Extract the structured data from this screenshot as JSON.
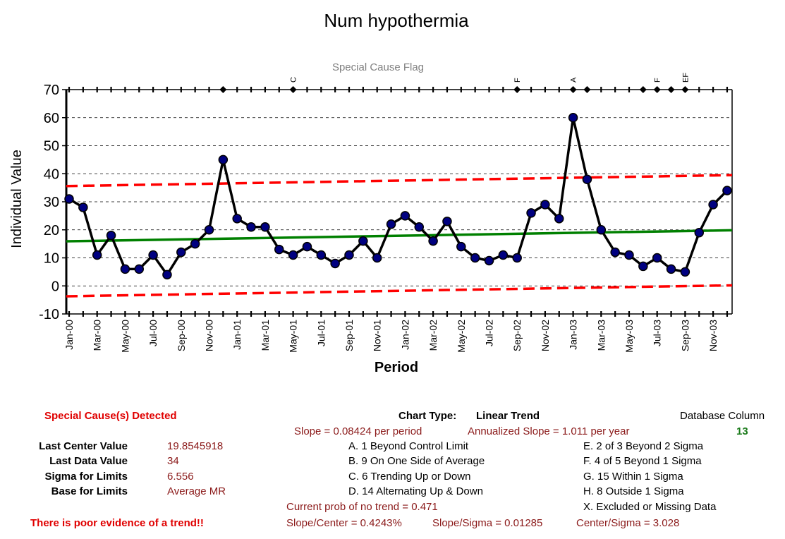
{
  "chart_data": {
    "type": "line",
    "title": "Num hypothermia",
    "flag_label": "Special Cause Flag",
    "xlabel": "Period",
    "ylabel": "Individual Value",
    "ylim": [
      -10,
      70
    ],
    "yticks": [
      -10,
      0,
      10,
      20,
      30,
      40,
      50,
      60,
      70
    ],
    "x_tick_labels": [
      "Jan-00",
      "Mar-00",
      "May-00",
      "Jul-00",
      "Sep-00",
      "Nov-00",
      "Jan-01",
      "Mar-01",
      "May-01",
      "Jul-01",
      "Sep-01",
      "Nov-01",
      "Jan-02",
      "Mar-02",
      "May-02",
      "Jul-02",
      "Sep-02",
      "Nov-02",
      "Jan-03",
      "Mar-03",
      "May-03",
      "Jul-03",
      "Sep-03",
      "Nov-03"
    ],
    "grid": "horizontal dashed",
    "series": [
      {
        "values": [
          31,
          28,
          11,
          18,
          6,
          6,
          11,
          4,
          12,
          15,
          20,
          45,
          24,
          21,
          21,
          13,
          11,
          14,
          11,
          8,
          11,
          16,
          10,
          22,
          25,
          21,
          16,
          23,
          14,
          10,
          9,
          11,
          10,
          26,
          29,
          24,
          60,
          38,
          20,
          12,
          11,
          7,
          10,
          6,
          5,
          19,
          29,
          34
        ],
        "color": "#000080"
      }
    ],
    "center_line": {
      "start": 15.9,
      "end": 19.85,
      "color": "#008000"
    },
    "ucl": {
      "start": 35.6,
      "end": 39.5,
      "color": "#ff0000"
    },
    "lcl": {
      "start": -3.7,
      "end": 0.2,
      "color": "#ff0000"
    },
    "flag_points": [
      11,
      16,
      32,
      36,
      37,
      41,
      42,
      43,
      44
    ],
    "flag_letters": [
      {
        "index": 16,
        "text": "C"
      },
      {
        "index": 32,
        "text": "F"
      },
      {
        "index": 36,
        "text": "A"
      },
      {
        "index": 42,
        "text": "F"
      },
      {
        "index": 44,
        "text": "EF"
      }
    ]
  },
  "stats": {
    "special_cause": "Special Cause(s) Detected",
    "last_center_label": "Last Center Value",
    "last_center_value": "19.8545918",
    "last_data_label": "Last Data Value",
    "last_data_value": "34",
    "sigma_label": "Sigma for Limits",
    "sigma_value": "6.556",
    "base_label": "Base for Limits",
    "base_value": "Average MR",
    "trend_evidence": "There is poor evidence of a trend!!",
    "chart_type_label": "Chart Type:",
    "chart_type_value": "Linear Trend",
    "slope": "Slope = 0.08424 per period",
    "annualized_slope": "Annualized Slope = 1.011 per year",
    "rule_a": "A.  1 Beyond Control Limit",
    "rule_b": "B.  9 On One Side of Average",
    "rule_c": "C.  6 Trending Up or Down",
    "rule_d": "D.  14 Alternating  Up & Down",
    "rule_e": "E.   2 of 3 Beyond 2 Sigma",
    "rule_f": "F.   4 of 5 Beyond 1 Sigma",
    "rule_g": "G.   15 Within 1 Sigma",
    "rule_h": "H.   8 Outside 1 Sigma",
    "rule_x": "X.  Excluded or Missing Data",
    "prob_no_trend": "Current prob of no trend = 0.471",
    "slope_center": "Slope/Center = 0.4243%",
    "slope_sigma": "Slope/Sigma = 0.01285",
    "center_sigma": "Center/Sigma = 3.028",
    "db_column_label": "Database Column",
    "db_column_value": "13"
  }
}
